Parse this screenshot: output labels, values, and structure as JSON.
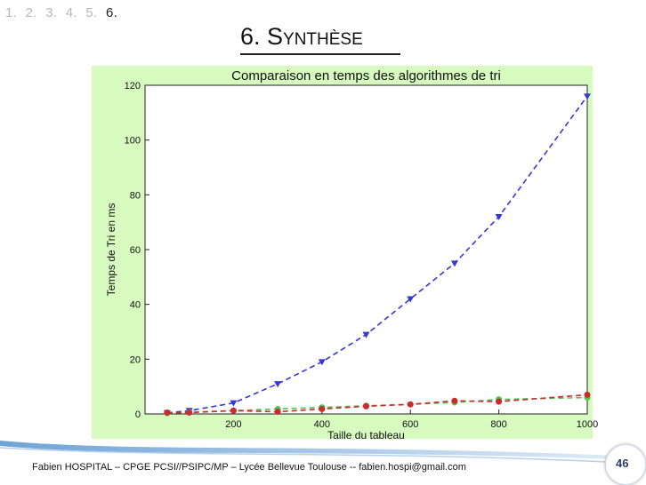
{
  "breadcrumb": {
    "items": [
      "1.",
      "2.",
      "3.",
      "4.",
      "5."
    ],
    "current": "6."
  },
  "slide": {
    "title": "6. Synthèse",
    "footer": "Fabien HOSPITAL – CPGE PCSI//PSIPC/MP – Lycée Bellevue  Toulouse -- fabien.hospi@gmail.com",
    "page_number": "46"
  },
  "colors": {
    "chart_background": "#d7fbbf",
    "blue_series": "#3636d9",
    "green_series": "#4fc44f",
    "red_series": "#cc2b2b"
  },
  "chart_data": {
    "type": "line",
    "title": "Comparaison en temps des algorithmes de tri",
    "xlabel": "Taille du tableau",
    "ylabel": "Temps de Tri en ms",
    "xlim": [
      0,
      1000
    ],
    "ylim": [
      0,
      120
    ],
    "xticks": [
      200,
      400,
      600,
      800,
      1000
    ],
    "yticks": [
      0,
      20,
      40,
      60,
      80,
      100,
      120
    ],
    "grid": false,
    "series": [
      {
        "color": "#3636d9",
        "marker": "triangle-down",
        "x": [
          50,
          100,
          200,
          300,
          400,
          500,
          600,
          700,
          800,
          1000
        ],
        "y": [
          0.4,
          1.2,
          4,
          11,
          19,
          29,
          42,
          55,
          72,
          116
        ]
      },
      {
        "color": "#4fc44f",
        "marker": "circle",
        "x": [
          50,
          100,
          200,
          300,
          400,
          500,
          600,
          700,
          800,
          1000
        ],
        "y": [
          0.3,
          0.6,
          1.2,
          1.8,
          2.4,
          3,
          3.5,
          4.2,
          5.3,
          6
        ]
      },
      {
        "color": "#cc2b2b",
        "marker": "circle",
        "x": [
          50,
          100,
          200,
          300,
          400,
          500,
          600,
          700,
          800,
          1000
        ],
        "y": [
          0.5,
          0.5,
          1.2,
          0.8,
          1.8,
          2.8,
          3.5,
          4.8,
          4.5,
          7
        ]
      }
    ]
  }
}
